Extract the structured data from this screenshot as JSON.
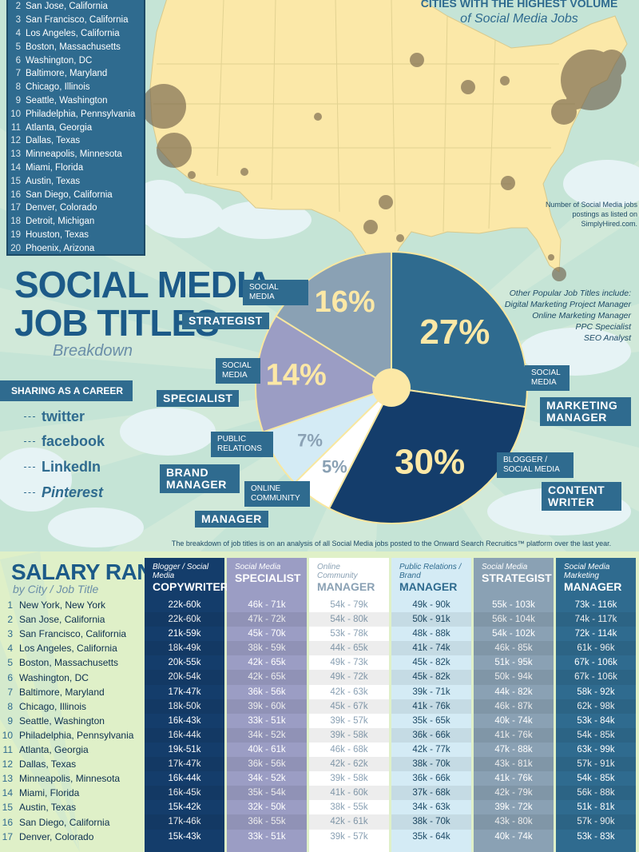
{
  "cities": [
    {
      "n": "2",
      "name": "San Jose, California"
    },
    {
      "n": "3",
      "name": "San Francisco, California"
    },
    {
      "n": "4",
      "name": "Los Angeles, California"
    },
    {
      "n": "5",
      "name": "Boston, Massachusetts"
    },
    {
      "n": "6",
      "name": "Washington, DC"
    },
    {
      "n": "7",
      "name": "Baltimore, Maryland"
    },
    {
      "n": "8",
      "name": "Chicago, Illinois"
    },
    {
      "n": "9",
      "name": "Seattle, Washington"
    },
    {
      "n": "10",
      "name": "Philadelphia, Pennsylvania"
    },
    {
      "n": "11",
      "name": "Atlanta, Georgia"
    },
    {
      "n": "12",
      "name": "Dallas, Texas"
    },
    {
      "n": "13",
      "name": "Minneapolis, Minnesota"
    },
    {
      "n": "14",
      "name": "Miami, Florida"
    },
    {
      "n": "15",
      "name": "Austin, Texas"
    },
    {
      "n": "16",
      "name": "San Diego, California"
    },
    {
      "n": "17",
      "name": "Denver, Colorado"
    },
    {
      "n": "18",
      "name": "Detroit, Michigan"
    },
    {
      "n": "19",
      "name": "Houston, Texas"
    },
    {
      "n": "20",
      "name": "Phoenix, Arizona"
    }
  ],
  "map": {
    "heading_a": "CITIES WITH THE HIGHEST VOLUME",
    "heading_b": "of Social Media Jobs",
    "note": "Number of Social Media jobs postings as listed on SimplyHired.com."
  },
  "titles": {
    "main_line1": "SOCIAL MEDIA",
    "main_line2": "JOB TITLES",
    "sub": "Breakdown"
  },
  "pie_labels": {
    "strategist_top": "SOCIAL MEDIA",
    "strategist": "STRATEGIST",
    "specialist_top": "SOCIAL MEDIA",
    "specialist": "SPECIALIST",
    "brand_top": "PUBLIC RELATIONS",
    "brand": "BRAND MANAGER",
    "community_top": "ONLINE COMMUNITY",
    "community": "MANAGER",
    "marketing_top": "SOCIAL MEDIA",
    "marketing": "MARKETING MANAGER",
    "content_top": "BLOGGER / SOCIAL MEDIA",
    "content": "CONTENT WRITER"
  },
  "other_titles": {
    "intro": "Other Popular Job Titles include:",
    "items": [
      "Digital Marketing Project Manager",
      "Online Marketing Manager",
      "PPC Specialist",
      "SEO Analyst"
    ]
  },
  "sharing": {
    "header": "SHARING AS A CAREER",
    "networks": [
      "twitter",
      "facebook",
      "LinkedIn",
      "Pinterest"
    ]
  },
  "pie_note": "The breakdown of job titles is on an analysis of all Social Media jobs posted to the Onward Search Recruitics™ platform over the last year.",
  "chart_data": {
    "type": "pie",
    "title": "SOCIAL MEDIA JOB TITLES",
    "subtitle": "Breakdown",
    "slices": [
      {
        "label": "Social Media Marketing Manager",
        "value": 27,
        "display": "27%",
        "color": "#2f6b8f"
      },
      {
        "label": "Blogger / Social Media Content Writer",
        "value": 30,
        "display": "30%",
        "color": "#143d6b"
      },
      {
        "label": "Online Community Manager",
        "value": 5,
        "display": "5%",
        "color": "#ffffff"
      },
      {
        "label": "Public Relations Brand Manager",
        "value": 7,
        "display": "7%",
        "color": "#d4ebf5"
      },
      {
        "label": "Social Media Specialist",
        "value": 14,
        "display": "14%",
        "color": "#9b9dc4"
      },
      {
        "label": "Social Media Strategist",
        "value": 16,
        "display": "16%",
        "color": "#8aa1b4"
      }
    ],
    "center_color": "#fce8a6"
  },
  "salary": {
    "title": "SALARY RANGES",
    "subtitle": "by City / Job Title",
    "columns": [
      {
        "top": "Blogger / Social Media",
        "main": "COPYWRITER",
        "bg": "#143d6b",
        "fg": "#ffffff",
        "head_fg": "#ffffff"
      },
      {
        "top": "Social Media",
        "main": "SPECIALIST",
        "bg": "#9b9dc4",
        "fg": "#ffffff",
        "head_fg": "#ffffff"
      },
      {
        "top": "Online Community",
        "main": "MANAGER",
        "bg": "#ffffff",
        "fg": "#8aa1b4",
        "head_fg": "#8aa1b4"
      },
      {
        "top": "Public Relations / Brand",
        "main": "MANAGER",
        "bg": "#d4ebf5",
        "fg": "#1d4a66",
        "head_fg": "#2f6b8f"
      },
      {
        "top": "Social Media",
        "main": "STRATEGIST",
        "bg": "#8aa1b4",
        "fg": "#ffffff",
        "head_fg": "#ffffff"
      },
      {
        "top": "Social Media Marketing",
        "main": "MANAGER",
        "bg": "#2f6b8f",
        "fg": "#ffffff",
        "head_fg": "#ffffff"
      }
    ],
    "rows": [
      {
        "n": "1",
        "city": "New York, New York",
        "v": [
          "22k-60k",
          "46k - 71k",
          "54k - 79k",
          "49k - 90k",
          "55k - 103k",
          "73k - 116k"
        ]
      },
      {
        "n": "2",
        "city": "San Jose, California",
        "v": [
          "22k-60k",
          "47k - 72k",
          "54k - 80k",
          "50k - 91k",
          "56k - 104k",
          "74k - 117k"
        ]
      },
      {
        "n": "3",
        "city": "San Francisco, California",
        "v": [
          "21k-59k",
          "45k - 70k",
          "53k - 78k",
          "48k - 88k",
          "54k - 102k",
          "72k - 114k"
        ]
      },
      {
        "n": "4",
        "city": "Los Angeles, California",
        "v": [
          "18k-49k",
          "38k - 59k",
          "44k - 65k",
          "41k - 74k",
          "46k - 85k",
          "61k - 96k"
        ]
      },
      {
        "n": "5",
        "city": "Boston, Massachusetts",
        "v": [
          "20k-55k",
          "42k - 65k",
          "49k - 73k",
          "45k - 82k",
          "51k - 95k",
          "67k - 106k"
        ]
      },
      {
        "n": "6",
        "city": "Washington, DC",
        "v": [
          "20k-54k",
          "42k - 65k",
          "49k - 72k",
          "45k - 82k",
          "50k - 94k",
          "67k - 106k"
        ]
      },
      {
        "n": "7",
        "city": "Baltimore, Maryland",
        "v": [
          "17k-47k",
          "36k - 56k",
          "42k - 63k",
          "39k - 71k",
          "44k - 82k",
          "58k - 92k"
        ]
      },
      {
        "n": "8",
        "city": "Chicago, Illinois",
        "v": [
          "18k-50k",
          "39k - 60k",
          "45k - 67k",
          "41k - 76k",
          "46k - 87k",
          "62k - 98k"
        ]
      },
      {
        "n": "9",
        "city": "Seattle, Washington",
        "v": [
          "16k-43k",
          "33k - 51k",
          "39k - 57k",
          "35k - 65k",
          "40k - 74k",
          "53k - 84k"
        ]
      },
      {
        "n": "10",
        "city": "Philadelphia, Pennsylvania",
        "v": [
          "16k-44k",
          "34k - 52k",
          "39k - 58k",
          "36k - 66k",
          "41k - 76k",
          "54k - 85k"
        ]
      },
      {
        "n": "11",
        "city": "Atlanta, Georgia",
        "v": [
          "19k-51k",
          "40k - 61k",
          "46k - 68k",
          "42k - 77k",
          "47k - 88k",
          "63k - 99k"
        ]
      },
      {
        "n": "12",
        "city": "Dallas, Texas",
        "v": [
          "17k-47k",
          "36k - 56k",
          "42k - 62k",
          "38k - 70k",
          "43k - 81k",
          "57k - 91k"
        ]
      },
      {
        "n": "13",
        "city": "Minneapolis, Minnesota",
        "v": [
          "16k-44k",
          "34k - 52k",
          "39k - 58k",
          "36k - 66k",
          "41k - 76k",
          "54k - 85k"
        ]
      },
      {
        "n": "14",
        "city": "Miami, Florida",
        "v": [
          "16k-45k",
          "35k - 54k",
          "41k - 60k",
          "37k - 68k",
          "42k - 79k",
          "56k - 88k"
        ]
      },
      {
        "n": "15",
        "city": "Austin, Texas",
        "v": [
          "15k-42k",
          "32k - 50k",
          "38k - 55k",
          "34k - 63k",
          "39k - 72k",
          "51k - 81k"
        ]
      },
      {
        "n": "16",
        "city": "San Diego, California",
        "v": [
          "17k-46k",
          "36k - 55k",
          "42k - 61k",
          "38k - 70k",
          "43k - 80k",
          "57k - 90k"
        ]
      },
      {
        "n": "17",
        "city": "Denver, Colorado",
        "v": [
          "15k-43k",
          "33k - 51k",
          "39k - 57k",
          "35k - 64k",
          "40k - 74k",
          "53k - 83k"
        ]
      }
    ]
  }
}
